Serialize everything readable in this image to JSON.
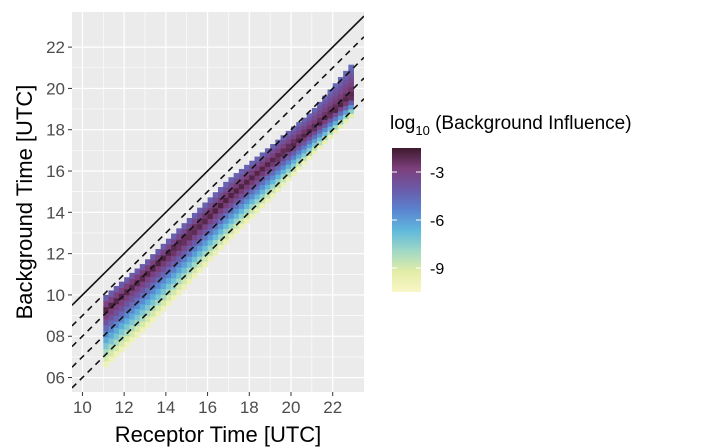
{
  "chart_data": {
    "type": "heatmap",
    "title": "",
    "xlabel": "Receptor Time [UTC]",
    "ylabel": "Background Time [UTC]",
    "xlim": [
      9.5,
      23.5
    ],
    "ylim": [
      5.3,
      23.7
    ],
    "x_ticks": [
      10,
      12,
      14,
      16,
      18,
      20,
      22
    ],
    "x_tick_labels": [
      "10",
      "12",
      "14",
      "16",
      "18",
      "20",
      "22"
    ],
    "y_ticks": [
      6,
      8,
      10,
      12,
      14,
      16,
      18,
      20,
      22
    ],
    "y_tick_labels": [
      "06",
      "08",
      "10",
      "12",
      "14",
      "16",
      "18",
      "20",
      "22"
    ],
    "grid": true,
    "background": "#ebebeb",
    "reference_lines": [
      {
        "style": "solid",
        "offset_hours": 0
      },
      {
        "style": "dashed",
        "offset_hours": -1
      },
      {
        "style": "dashed",
        "offset_hours": -2
      },
      {
        "style": "dashed",
        "offset_hours": -3
      },
      {
        "style": "dashed",
        "offset_hours": -4
      }
    ],
    "data_region": {
      "x_range": [
        11,
        23
      ],
      "upper_edge": [
        [
          11,
          9.9
        ],
        [
          13,
          11.6
        ],
        [
          15,
          13.6
        ],
        [
          17,
          15.6
        ],
        [
          19,
          17.2
        ],
        [
          21,
          18.9
        ],
        [
          23,
          21.3
        ]
      ],
      "lower_edge": [
        [
          11,
          6.4
        ],
        [
          13,
          8.3
        ],
        [
          15,
          10.4
        ],
        [
          17,
          12.6
        ],
        [
          19,
          14.6
        ],
        [
          21,
          16.7
        ],
        [
          23,
          18.7
        ]
      ],
      "ridge": [
        [
          11,
          9.2
        ],
        [
          13,
          11.0
        ],
        [
          15,
          12.8
        ],
        [
          17,
          14.7
        ],
        [
          19,
          16.4
        ],
        [
          21,
          18.0
        ],
        [
          23,
          19.7
        ]
      ]
    },
    "color_scale": {
      "title": "log10 (Background Influence)",
      "title_main": "log",
      "title_sub": "10",
      "title_rest": " (Background Influence)",
      "min": -10.5,
      "max": -1.5,
      "ticks": [
        -3,
        -6,
        -9
      ],
      "tick_labels": [
        "-3",
        "-6",
        "-9"
      ],
      "colors": [
        "#fbf6c8",
        "#e2eda7",
        "#9fd8c6",
        "#5fb8db",
        "#5a83d0",
        "#6b5aa8",
        "#7d3f7c",
        "#3e1a2e"
      ]
    },
    "legend_position": "right"
  }
}
